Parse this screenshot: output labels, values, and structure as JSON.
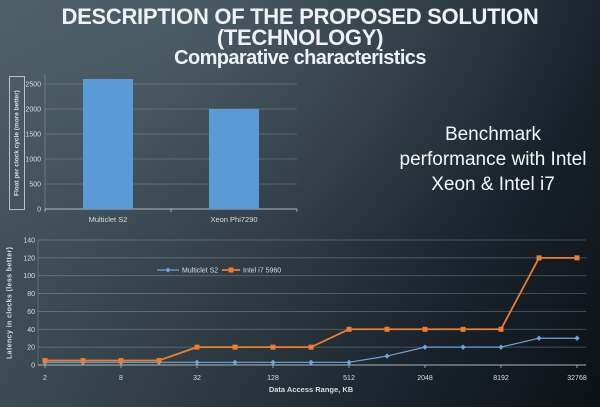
{
  "slide": {
    "title_lines": [
      "DESCRIPTION OF THE PROPOSED SOLUTION",
      "(TECHNOLOGY)"
    ],
    "subtitle": "Comparative characteristics",
    "benchmark_note_lines": [
      "Benchmark",
      "performance with Intel",
      "Xeon & Intel i7"
    ]
  },
  "colors": {
    "background_top": "#47575f",
    "background_bottom": "#0c1116",
    "title_text": "#eef1f4",
    "bar_fill": "#5b9bd5",
    "series_blue": "#6fa3d8",
    "series_orange": "#ed7d31",
    "grid_line": "#aab3b9",
    "axis_line": "#c7ccd1",
    "tick_text": "#d8dde1"
  },
  "chart_data": [
    {
      "type": "bar",
      "title": "",
      "ylabel": "Float per clock cycle (more better)",
      "categories": [
        "Multiclet S2",
        "Xeon Phi7290"
      ],
      "values": [
        2600,
        2000
      ],
      "ylim": [
        0,
        2600
      ],
      "yticks": [
        0,
        500,
        1000,
        1500,
        2000,
        2500
      ],
      "grid": true,
      "bar_color": "#5b9bd5"
    },
    {
      "type": "line",
      "title": "",
      "xlabel": "Data Access Range, KB",
      "ylabel": "Latency in clocks (less better)",
      "x_scale": "log2",
      "x": [
        2,
        4,
        8,
        16,
        32,
        64,
        128,
        256,
        512,
        1024,
        2048,
        4096,
        8192,
        16384,
        32768
      ],
      "x_tick_labels": [
        "2",
        "8",
        "32",
        "128",
        "512",
        "2048",
        "8192",
        "32768"
      ],
      "ylim": [
        0,
        140
      ],
      "yticks": [
        0,
        20,
        40,
        60,
        80,
        100,
        120,
        140
      ],
      "grid": true,
      "legend_position": "top-inside-left",
      "series": [
        {
          "name": "Multiclet S2",
          "color": "#6fa3d8",
          "marker": "diamond",
          "values": [
            3,
            3,
            3,
            3,
            3,
            3,
            3,
            3,
            3,
            10,
            20,
            20,
            20,
            30,
            30
          ]
        },
        {
          "name": "Intel i7 5960",
          "color": "#ed7d31",
          "marker": "square",
          "values": [
            5,
            5,
            5,
            5,
            20,
            20,
            20,
            20,
            40,
            40,
            40,
            40,
            40,
            120,
            120
          ]
        }
      ]
    }
  ]
}
